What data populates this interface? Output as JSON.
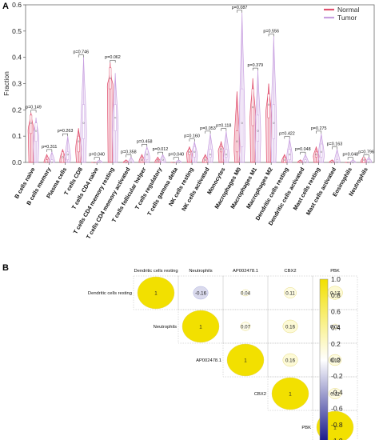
{
  "panel_a_label": "A",
  "panel_b_label": "B",
  "chart_data": [
    {
      "type": "violin",
      "ylabel": "Fraction",
      "ylim": [
        0,
        0.6
      ],
      "yticks": [
        0.0,
        0.1,
        0.2,
        0.3,
        0.4,
        0.5,
        0.6
      ],
      "legend": {
        "position": "top-right",
        "entries": [
          {
            "name": "Normal",
            "color": "#e0506e"
          },
          {
            "name": "Tumor",
            "color": "#c8a0e0"
          }
        ]
      },
      "categories": [
        "B cells naive",
        "B cells memory",
        "Plasma cells",
        "T cells CD8",
        "T cells CD4 naive",
        "T cells CD4 memory resting",
        "T cells CD4 memory activated",
        "T cells follicular helper",
        "T cells regulatory",
        "T cells gamma delta",
        "NK cells resting",
        "NK cells activated",
        "Monocytes",
        "Macrophages M0",
        "Macrophages M1",
        "Macrophages M2",
        "Dendritic cells resting",
        "Dendritic cells activated",
        "Mast cells resting",
        "Mast cells activated",
        "Eosinophils",
        "Neutrophils"
      ],
      "p_values": [
        "p=0.149",
        "p=0.311",
        "p=0.263",
        "p=0.746",
        "p=0.040",
        "p=0.062",
        "p=0.358",
        "p=0.458",
        "p=0.012",
        "p=0.040",
        "p=0.160",
        "p=0.053",
        "p=0.118",
        "p=0.087",
        "p=0.379",
        "p=0.556",
        "p=0.422",
        "p=0.048",
        "p=0.275",
        "p=0.163",
        "p=0.048",
        "p=0.796"
      ],
      "series": [
        {
          "name": "Normal",
          "median": [
            0.15,
            0.0,
            0.02,
            0.08,
            0.0,
            0.32,
            0.0,
            0.01,
            0.005,
            0.0,
            0.04,
            0.01,
            0.05,
            0.08,
            0.21,
            0.22,
            0.01,
            0.0,
            0.03,
            0.0,
            0.0,
            0.01
          ],
          "q1": [
            0.11,
            0.0,
            0.0,
            0.04,
            0.0,
            0.28,
            0.0,
            0.0,
            0.0,
            0.0,
            0.03,
            0.0,
            0.04,
            0.04,
            0.14,
            0.17,
            0.0,
            0.0,
            0.02,
            0.0,
            0.0,
            0.0
          ],
          "q3": [
            0.18,
            0.01,
            0.04,
            0.1,
            0.0,
            0.36,
            0.0,
            0.02,
            0.01,
            0.0,
            0.05,
            0.02,
            0.06,
            0.12,
            0.28,
            0.26,
            0.02,
            0.0,
            0.04,
            0.0,
            0.0,
            0.02
          ],
          "max": [
            0.19,
            0.03,
            0.05,
            0.13,
            0.0,
            0.38,
            0.01,
            0.03,
            0.02,
            0.0,
            0.06,
            0.03,
            0.08,
            0.27,
            0.32,
            0.3,
            0.03,
            0.01,
            0.06,
            0.01,
            0.0,
            0.02
          ]
        },
        {
          "name": "Tumor",
          "median": [
            0.12,
            0.0,
            0.03,
            0.15,
            0.0,
            0.17,
            0.0,
            0.03,
            0.01,
            0.0,
            0.04,
            0.03,
            0.03,
            0.15,
            0.12,
            0.15,
            0.03,
            0.0,
            0.04,
            0.0,
            0.0,
            0.0
          ],
          "q1": [
            0.08,
            0.0,
            0.01,
            0.09,
            0.0,
            0.12,
            0.0,
            0.01,
            0.0,
            0.0,
            0.02,
            0.02,
            0.02,
            0.06,
            0.08,
            0.09,
            0.01,
            0.0,
            0.02,
            0.0,
            0.0,
            0.0
          ],
          "q3": [
            0.15,
            0.01,
            0.04,
            0.22,
            0.0,
            0.22,
            0.0,
            0.05,
            0.02,
            0.0,
            0.06,
            0.05,
            0.05,
            0.28,
            0.18,
            0.22,
            0.05,
            0.01,
            0.07,
            0.01,
            0.0,
            0.01
          ],
          "max": [
            0.17,
            0.04,
            0.1,
            0.4,
            0.01,
            0.34,
            0.02,
            0.06,
            0.03,
            0.01,
            0.08,
            0.11,
            0.12,
            0.57,
            0.35,
            0.48,
            0.09,
            0.03,
            0.11,
            0.05,
            0.01,
            0.02
          ]
        }
      ]
    },
    {
      "type": "heatmap",
      "variables": [
        "Dendritic cells resting",
        "Neutrophils",
        "AP002478.1",
        "CBX2",
        "PBK"
      ],
      "cells": [
        {
          "row": 0,
          "col": 0,
          "value": 1,
          "label": "1"
        },
        {
          "row": 0,
          "col": 1,
          "value": -0.16,
          "label": "-0.16"
        },
        {
          "row": 0,
          "col": 2,
          "value": 0.04,
          "label": "0.04"
        },
        {
          "row": 0,
          "col": 3,
          "value": 0.11,
          "label": "0.11"
        },
        {
          "row": 0,
          "col": 4,
          "value": 0.17,
          "label": "0.17"
        },
        {
          "row": 1,
          "col": 1,
          "value": 1,
          "label": "1"
        },
        {
          "row": 1,
          "col": 2,
          "value": 0.07,
          "label": "0.07"
        },
        {
          "row": 1,
          "col": 3,
          "value": 0.16,
          "label": "0.16"
        },
        {
          "row": 1,
          "col": 4,
          "value": 0.02,
          "label": "0.02"
        },
        {
          "row": 2,
          "col": 2,
          "value": 1,
          "label": "1"
        },
        {
          "row": 2,
          "col": 3,
          "value": 0.16,
          "label": "0.16"
        },
        {
          "row": 2,
          "col": 4,
          "value": 0.12,
          "label": "0.12"
        },
        {
          "row": 3,
          "col": 3,
          "value": 1,
          "label": "1"
        },
        {
          "row": 3,
          "col": 4,
          "value": 0.11,
          "label": "0.11"
        },
        {
          "row": 4,
          "col": 4,
          "value": 1,
          "label": "1"
        }
      ],
      "colorbar": {
        "ticks": [
          "1.0",
          "0.8",
          "0.6",
          "0.4",
          "0.2",
          "0.0",
          "-0.2",
          "-0.4",
          "-0.6",
          "-0.8",
          "-1.0"
        ],
        "range": [
          -1,
          1
        ],
        "high_color": "#f2e000",
        "low_color": "#1a1a8c"
      }
    }
  ]
}
